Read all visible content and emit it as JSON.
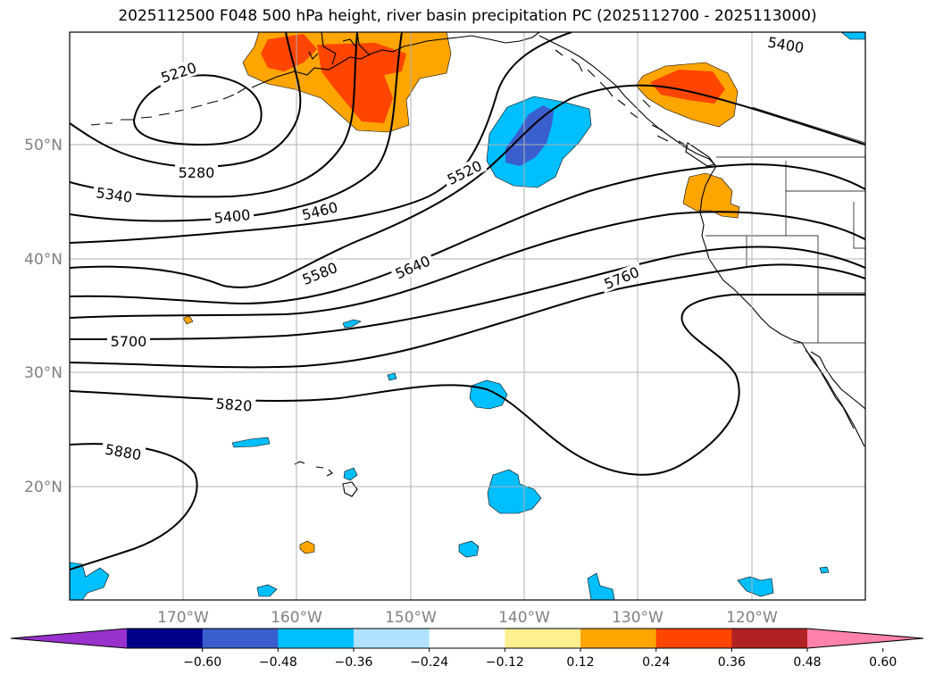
{
  "title": "2025112500 F048 500 hPa height, river basin precipitation PC (2025112700 - 2025113000)",
  "lat_labels": [
    "50°N",
    "40°N",
    "30°N",
    "20°N"
  ],
  "lon_labels": [
    "170°W",
    "160°W",
    "150°W",
    "140°W",
    "130°W",
    "120°W"
  ],
  "contour_labels": [
    "5220",
    "5280",
    "5340",
    "5400",
    "5460",
    "5520",
    "5580",
    "5640",
    "5700",
    "5760",
    "5820",
    "5880",
    "5400"
  ],
  "colorbar": {
    "ticks": [
      "−0.60",
      "−0.48",
      "−0.36",
      "−0.24",
      "−0.12",
      "0.12",
      "0.24",
      "0.36",
      "0.48",
      "0.60"
    ],
    "colors": {
      "under": "#9932cc",
      "bins": [
        "#9932cc",
        "#00008b",
        "#3a5fcd",
        "#00bfff",
        "#b0e2ff",
        "#ffffff",
        "#fff08f",
        "#ffa500",
        "#ff4500",
        "#b22222",
        "#ff82ab"
      ],
      "over": "#ff82ab"
    }
  },
  "colors": {
    "precip_orange": "#ffa500",
    "precip_redorange": "#ff4500",
    "precip_cyan": "#00bfff",
    "precip_blue": "#3a5fcd",
    "grid": "#b0b0b0"
  }
}
